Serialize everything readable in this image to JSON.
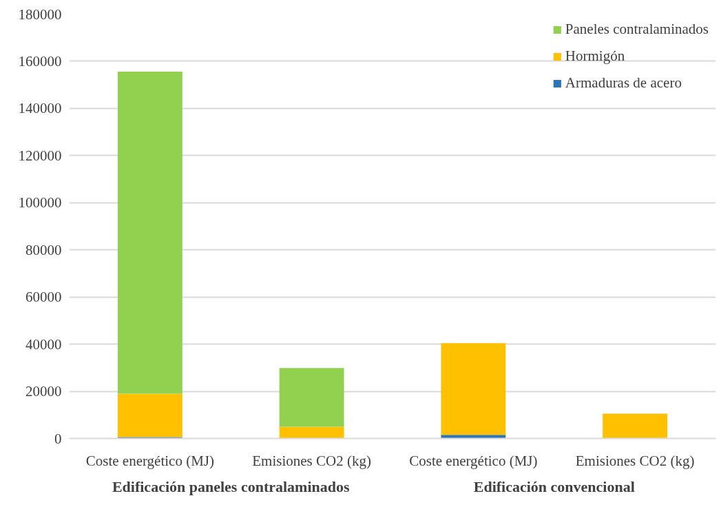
{
  "chart_data": {
    "type": "bar",
    "stacked": true,
    "categories": [
      "Coste energético (MJ)",
      "Emisiones CO2 (kg)",
      "Coste energético (MJ)",
      "Emisiones CO2 (kg)"
    ],
    "series": [
      {
        "name": "Armaduras de acero",
        "color": "#2e75b6",
        "values": [
          600,
          0,
          1500,
          0
        ]
      },
      {
        "name": "Hormigón",
        "color": "#ffc000",
        "values": [
          18400,
          5000,
          38900,
          10500
        ]
      },
      {
        "name": "Paneles contralaminados",
        "color": "#92d050",
        "values": [
          136600,
          24900,
          0,
          0
        ]
      }
    ],
    "ylim": [
      0,
      180000
    ],
    "yticks": [
      0,
      20000,
      40000,
      60000,
      80000,
      100000,
      120000,
      140000,
      160000,
      180000
    ],
    "grid": "y",
    "legend": "top right",
    "annotations": [
      "Edificación paneles contralaminados",
      "Edificación convencional"
    ]
  }
}
